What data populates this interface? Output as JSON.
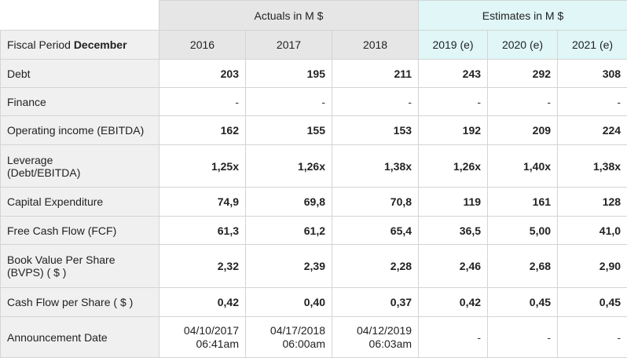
{
  "header": {
    "actuals_label": "Actuals in M $",
    "estimates_label": "Estimates in M $",
    "fiscal_period_prefix": "Fiscal Period ",
    "fiscal_period_month": "December",
    "years": [
      "2016",
      "2017",
      "2018",
      "2019 (e)",
      "2020 (e)",
      "2021 (e)"
    ]
  },
  "rows": [
    {
      "label": "Debt",
      "values": [
        "203",
        "195",
        "211",
        "243",
        "292",
        "308"
      ]
    },
    {
      "label": "Finance",
      "values": [
        "-",
        "-",
        "-",
        "-",
        "-",
        "-"
      ]
    },
    {
      "label": "Operating income (EBITDA)",
      "values": [
        "162",
        "155",
        "153",
        "192",
        "209",
        "224"
      ]
    },
    {
      "label_line1": "Leverage",
      "label_line2": "(Debt/EBITDA)",
      "values": [
        "1,25x",
        "1,26x",
        "1,38x",
        "1,26x",
        "1,40x",
        "1,38x"
      ]
    },
    {
      "label": "Capital Expenditure",
      "values": [
        "74,9",
        "69,8",
        "70,8",
        "119",
        "161",
        "128"
      ]
    },
    {
      "label": "Free Cash Flow (FCF)",
      "values": [
        "61,3",
        "61,2",
        "65,4",
        "36,5",
        "5,00",
        "41,0"
      ]
    },
    {
      "label_line1": "Book Value Per Share",
      "label_line2": "(BVPS) ( $ )",
      "values": [
        "2,32",
        "2,39",
        "2,28",
        "2,46",
        "2,68",
        "2,90"
      ]
    },
    {
      "label": "Cash Flow per Share ( $ )",
      "values": [
        "0,42",
        "0,40",
        "0,37",
        "0,42",
        "0,45",
        "0,45"
      ]
    }
  ],
  "announcement": {
    "label": "Announcement Date",
    "dates": [
      {
        "date": "04/10/2017",
        "time": "06:41am"
      },
      {
        "date": "04/17/2018",
        "time": "06:00am"
      },
      {
        "date": "04/12/2019",
        "time": "06:03am"
      }
    ],
    "estimates": [
      "-",
      "-",
      "-"
    ]
  }
}
